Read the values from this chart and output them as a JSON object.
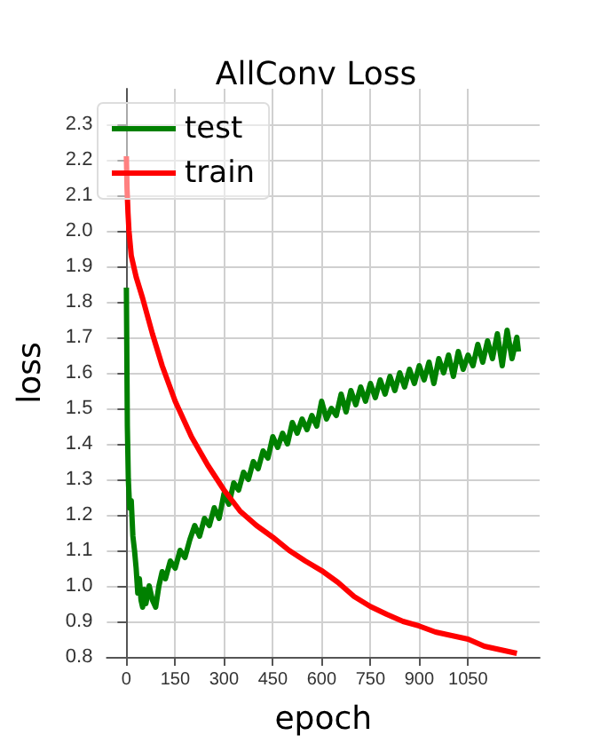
{
  "chart_data": {
    "type": "line",
    "title": "AllConv Loss",
    "xlabel": "epoch",
    "ylabel": "loss",
    "series": [
      {
        "name": "test",
        "color": "#008000",
        "x": [
          0,
          3,
          6,
          10,
          15,
          20,
          25,
          30,
          35,
          40,
          45,
          50,
          55,
          60,
          70,
          80,
          90,
          100,
          110,
          120,
          135,
          150,
          165,
          180,
          195,
          210,
          225,
          240,
          255,
          270,
          285,
          300,
          315,
          330,
          345,
          360,
          375,
          390,
          405,
          420,
          435,
          450,
          465,
          480,
          495,
          510,
          525,
          540,
          555,
          570,
          585,
          600,
          615,
          630,
          645,
          660,
          675,
          690,
          705,
          720,
          735,
          750,
          765,
          780,
          795,
          810,
          825,
          840,
          855,
          870,
          885,
          900,
          915,
          930,
          945,
          960,
          975,
          990,
          1005,
          1020,
          1035,
          1050,
          1065,
          1080,
          1095,
          1110,
          1125,
          1140,
          1155,
          1170,
          1185,
          1200,
          1205
        ],
        "values": [
          1.84,
          1.45,
          1.3,
          1.22,
          1.24,
          1.14,
          1.1,
          1.05,
          0.98,
          1.02,
          0.96,
          0.94,
          0.99,
          0.95,
          1.0,
          0.96,
          0.94,
          1.0,
          1.04,
          1.02,
          1.07,
          1.05,
          1.1,
          1.08,
          1.13,
          1.17,
          1.14,
          1.19,
          1.17,
          1.22,
          1.19,
          1.26,
          1.23,
          1.29,
          1.27,
          1.32,
          1.3,
          1.35,
          1.33,
          1.38,
          1.36,
          1.42,
          1.39,
          1.43,
          1.4,
          1.46,
          1.43,
          1.47,
          1.44,
          1.48,
          1.45,
          1.52,
          1.47,
          1.5,
          1.48,
          1.54,
          1.49,
          1.55,
          1.51,
          1.56,
          1.52,
          1.57,
          1.53,
          1.58,
          1.54,
          1.59,
          1.55,
          1.6,
          1.56,
          1.61,
          1.57,
          1.62,
          1.58,
          1.63,
          1.57,
          1.64,
          1.6,
          1.65,
          1.59,
          1.66,
          1.61,
          1.65,
          1.62,
          1.68,
          1.63,
          1.69,
          1.64,
          1.71,
          1.62,
          1.72,
          1.64,
          1.7,
          1.66
        ]
      },
      {
        "name": "train",
        "color": "#ff0000",
        "x": [
          0,
          2,
          5,
          8,
          15,
          30,
          50,
          80,
          110,
          150,
          200,
          250,
          300,
          350,
          400,
          450,
          500,
          550,
          600,
          650,
          700,
          750,
          800,
          850,
          900,
          950,
          1000,
          1050,
          1100,
          1150,
          1200
        ],
        "values": [
          2.21,
          2.12,
          2.05,
          2.0,
          1.93,
          1.87,
          1.81,
          1.71,
          1.62,
          1.52,
          1.42,
          1.34,
          1.27,
          1.21,
          1.17,
          1.137,
          1.1,
          1.07,
          1.043,
          1.01,
          0.97,
          0.942,
          0.92,
          0.9,
          0.887,
          0.87,
          0.86,
          0.85,
          0.83,
          0.82,
          0.81
        ]
      }
    ],
    "xlim": [
      -60,
      1270
    ],
    "xticks": [
      0,
      150,
      300,
      450,
      600,
      750,
      900,
      1050
    ],
    "ylim": [
      0.8,
      2.4
    ],
    "yticks": [
      0.8,
      0.9,
      {
        "value": 1,
        "label": "1.0"
      },
      1.1,
      1.2,
      1.3,
      1.4,
      1.5,
      1.6,
      1.7,
      1.8,
      1.9,
      {
        "value": 2,
        "label": "2.0"
      },
      2.1,
      2.2,
      2.3
    ],
    "grid": true,
    "legend": "top left",
    "marker": "none",
    "line_style": "solid"
  }
}
